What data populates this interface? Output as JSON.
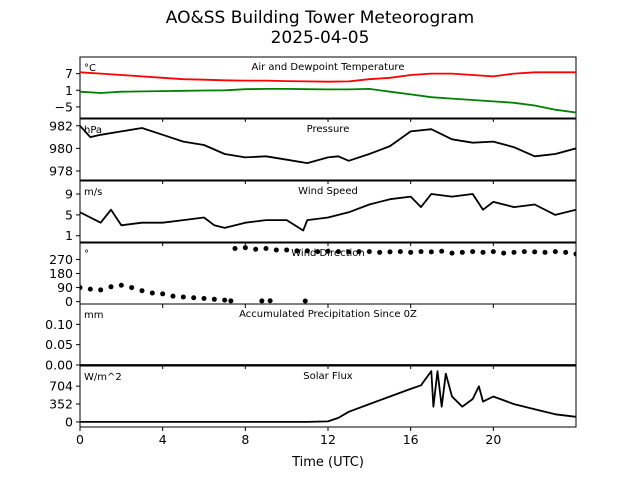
{
  "title": "AO&SS Building Tower Meteorogram",
  "subtitle": "2025-04-05",
  "xlabel": "Time (UTC)",
  "colors": {
    "temperature": "#ff0000",
    "dewpoint": "#008000",
    "default": "#000000"
  },
  "chart_data": [
    {
      "type": "line",
      "panel_title": "Air and Dewpoint Temperature",
      "unit_label": "°C",
      "ylim": [
        -9,
        13
      ],
      "yticks": [
        -5,
        1,
        7
      ],
      "ytick_labels": [
        "−5",
        "1",
        "7"
      ],
      "xlim": [
        0,
        24
      ],
      "xticks": [
        0,
        4,
        8,
        12,
        16,
        20
      ],
      "series": [
        {
          "key": "temperature",
          "color": "#ff0000",
          "x": [
            0,
            1,
            2,
            3,
            4,
            5,
            6,
            7,
            8,
            9,
            10,
            11,
            12,
            13,
            14,
            15,
            16,
            17,
            18,
            19,
            20,
            21,
            22,
            23,
            24
          ],
          "values": [
            7.5,
            7,
            6.5,
            6,
            5.5,
            5,
            4.8,
            4.6,
            4.5,
            4.5,
            4.3,
            4.2,
            4.1,
            4.2,
            5,
            5.5,
            6.5,
            7,
            7,
            6.5,
            6,
            7,
            7.5,
            7.5,
            7.5
          ]
        },
        {
          "key": "dewpoint",
          "color": "#008000",
          "x": [
            0,
            1,
            2,
            3,
            4,
            5,
            6,
            7,
            8,
            9,
            10,
            11,
            12,
            13,
            14,
            15,
            16,
            17,
            18,
            19,
            20,
            21,
            22,
            23,
            24
          ],
          "values": [
            0.5,
            0,
            0.5,
            0.6,
            0.7,
            0.8,
            0.9,
            1,
            1.4,
            1.5,
            1.5,
            1.4,
            1.3,
            1.3,
            1.5,
            0.5,
            -0.5,
            -1.5,
            -2,
            -2.5,
            -3,
            -3.5,
            -4.5,
            -6,
            -7
          ]
        }
      ]
    },
    {
      "type": "line",
      "panel_title": "Pressure",
      "unit_label": "hPa",
      "ylim": [
        977.2,
        982.6
      ],
      "yticks": [
        978,
        980,
        982
      ],
      "ytick_labels": [
        "978",
        "980",
        "982"
      ],
      "xlim": [
        0,
        24
      ],
      "xticks": [
        0,
        4,
        8,
        12,
        16,
        20
      ],
      "series": [
        {
          "key": "pressure",
          "color": "#000000",
          "x": [
            0,
            0.5,
            1,
            2,
            3,
            4,
            5,
            6,
            7,
            8,
            9,
            10,
            11,
            12,
            12.5,
            13,
            14,
            15,
            16,
            17,
            18,
            19,
            20,
            21,
            22,
            23,
            24
          ],
          "values": [
            982,
            981,
            981.2,
            981.5,
            981.8,
            981.2,
            980.6,
            980.3,
            979.5,
            979.2,
            979.3,
            979,
            978.7,
            979.2,
            979.3,
            978.9,
            979.5,
            980.2,
            981.5,
            981.7,
            980.8,
            980.5,
            980.6,
            980.1,
            979.3,
            979.5,
            980
          ]
        }
      ]
    },
    {
      "type": "line",
      "panel_title": "Wind Speed",
      "unit_label": "m/s",
      "ylim": [
        -0.2,
        11.5
      ],
      "yticks": [
        1,
        5,
        9
      ],
      "ytick_labels": [
        "1",
        "5",
        "9"
      ],
      "xlim": [
        0,
        24
      ],
      "xticks": [
        0,
        4,
        8,
        12,
        16,
        20
      ],
      "series": [
        {
          "key": "wind_speed",
          "color": "#000000",
          "x": [
            0,
            1,
            1.5,
            2,
            3,
            4,
            5,
            6,
            6.5,
            7,
            8,
            9,
            10,
            10.8,
            11,
            12,
            13,
            14,
            15,
            16,
            16.5,
            17,
            18,
            19,
            19.5,
            20,
            21,
            22,
            23,
            24
          ],
          "values": [
            5.5,
            3.5,
            6,
            3,
            3.5,
            3.5,
            4,
            4.5,
            3,
            2.5,
            3.5,
            4,
            4,
            2,
            4,
            4.5,
            5.5,
            7,
            8,
            8.5,
            6.5,
            9,
            8.5,
            9,
            6,
            7.5,
            6.5,
            7,
            5,
            6
          ]
        }
      ]
    },
    {
      "type": "scatter",
      "panel_title": "Wind Direction",
      "unit_label": "°",
      "ylim": [
        -15,
        375
      ],
      "yticks": [
        0,
        90,
        180,
        270
      ],
      "ytick_labels": [
        "0",
        "90",
        "180",
        "270"
      ],
      "xlim": [
        0,
        24
      ],
      "xticks": [
        0,
        4,
        8,
        12,
        16,
        20
      ],
      "series": [
        {
          "key": "wind_direction",
          "color": "#000000",
          "x": [
            0,
            0.5,
            1,
            1.5,
            2,
            2.5,
            3,
            3.5,
            4,
            4.5,
            5,
            5.5,
            6,
            6.5,
            7,
            7.3,
            7.5,
            8,
            8.5,
            9,
            9.5,
            10,
            10.5,
            11,
            11.5,
            12,
            12.5,
            13,
            13.5,
            14,
            14.5,
            15,
            15.5,
            16,
            16.5,
            17,
            17.5,
            18,
            18.5,
            19,
            19.5,
            20,
            20.5,
            21,
            21.5,
            22,
            22.5,
            23,
            23.5,
            24,
            8.8,
            9.2,
            10.9
          ],
          "values": [
            90,
            80,
            75,
            95,
            105,
            90,
            70,
            55,
            50,
            35,
            30,
            25,
            20,
            15,
            10,
            5,
            340,
            345,
            335,
            340,
            330,
            330,
            325,
            325,
            320,
            322,
            320,
            318,
            320,
            320,
            315,
            318,
            320,
            315,
            320,
            318,
            322,
            310,
            315,
            320,
            315,
            320,
            310,
            315,
            320,
            318,
            315,
            320,
            315,
            305,
            5,
            6,
            4
          ]
        }
      ]
    },
    {
      "type": "line",
      "panel_title": "Accumulated Precipitation Since 0Z",
      "unit_label": "mm",
      "ylim": [
        0,
        0.15
      ],
      "yticks": [
        0,
        0.05,
        0.1
      ],
      "ytick_labels": [
        "0.00",
        "0.05",
        "0.10"
      ],
      "xlim": [
        0,
        24
      ],
      "xticks": [
        0,
        4,
        8,
        12,
        16,
        20
      ],
      "series": [
        {
          "key": "precipitation",
          "color": "#000000",
          "x": [
            0,
            24
          ],
          "values": [
            0,
            0
          ]
        }
      ]
    },
    {
      "type": "line",
      "panel_title": "Solar Flux",
      "unit_label": "W/m^2",
      "ylim": [
        -100,
        1100
      ],
      "yticks": [
        0,
        352,
        704
      ],
      "ytick_labels": [
        "0",
        "352",
        "704"
      ],
      "xlim": [
        0,
        24
      ],
      "xticks": [
        0,
        4,
        8,
        12,
        16,
        20
      ],
      "xtick_labels": [
        "0",
        "4",
        "8",
        "12",
        "16",
        "20"
      ],
      "series": [
        {
          "key": "solar_flux",
          "color": "#000000",
          "x": [
            0,
            4,
            8,
            11,
            12,
            12.5,
            13,
            14,
            15,
            16,
            16.5,
            17,
            17.1,
            17.3,
            17.5,
            17.7,
            18,
            18.5,
            19,
            19.3,
            19.5,
            20,
            21,
            22,
            22.5,
            23,
            24
          ],
          "values": [
            0,
            0,
            0,
            0,
            10,
            80,
            200,
            350,
            500,
            650,
            720,
            1000,
            300,
            1000,
            300,
            950,
            500,
            300,
            450,
            700,
            400,
            500,
            350,
            250,
            200,
            150,
            100
          ]
        }
      ]
    }
  ]
}
